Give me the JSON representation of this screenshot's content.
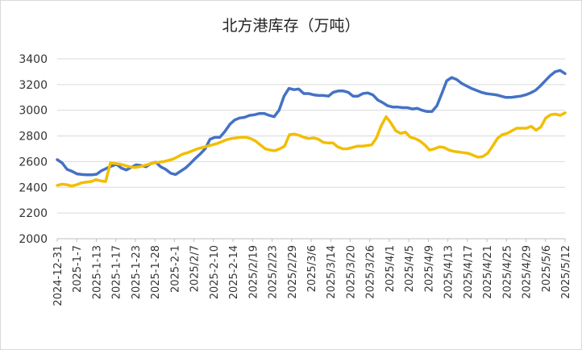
{
  "chart_data": {
    "type": "line",
    "title": "北方港库存（万吨）",
    "xlabel": "",
    "ylabel": "",
    "ylim": [
      2000,
      3400
    ],
    "yticks": [
      2000,
      2200,
      2400,
      2600,
      2800,
      3000,
      3200,
      3400
    ],
    "x_tick_labels": [
      "2024-12-31",
      "2025-1-7",
      "2025-1-13",
      "2025-1-17",
      "2025-1-23",
      "2025-1-28",
      "2025-2-1",
      "2025/2/7",
      "2025-2-10",
      "2025-2-14",
      "2025/2/19",
      "2025/2/23",
      "2025/2/29",
      "2025/3/6",
      "2025/3/14",
      "2025/3/20",
      "2025/3/26",
      "2025/4/1",
      "2025/4/5",
      "2025/4/9",
      "2025/4/13",
      "2025/4/17",
      "2025/4/21",
      "2025/4/25",
      "2025/4/29",
      "2025/5/6",
      "2025/5/12"
    ],
    "grid": "horizontal",
    "legend": "none",
    "colors": [
      "#4472C4",
      "#F2BE00"
    ],
    "series": [
      {
        "values": [
          2615,
          2590,
          2540,
          2525,
          2505,
          2500,
          2498,
          2497,
          2502,
          2530,
          2548,
          2565,
          2580,
          2550,
          2535,
          2555,
          2575,
          2570,
          2560,
          2585,
          2595,
          2560,
          2540,
          2510,
          2500,
          2525,
          2550,
          2585,
          2625,
          2660,
          2700,
          2775,
          2790,
          2790,
          2835,
          2890,
          2925,
          2940,
          2945,
          2960,
          2965,
          2975,
          2975,
          2960,
          2950,
          3000,
          3110,
          3170,
          3160,
          3165,
          3130,
          3130,
          3120,
          3115,
          3115,
          3110,
          3140,
          3150,
          3150,
          3140,
          3110,
          3110,
          3130,
          3135,
          3120,
          3080,
          3060,
          3035,
          3025,
          3025,
          3020,
          3020,
          3010,
          3015,
          3000,
          2990,
          2990,
          3035,
          3130,
          3230,
          3255,
          3240,
          3210,
          3190,
          3170,
          3155,
          3140,
          3130,
          3125,
          3120,
          3110,
          3100,
          3100,
          3105,
          3110,
          3120,
          3135,
          3155,
          3190,
          3230,
          3270,
          3300,
          3310,
          3285
        ]
      },
      {
        "values": [
          2415,
          2425,
          2420,
          2410,
          2420,
          2435,
          2440,
          2445,
          2460,
          2450,
          2445,
          2590,
          2585,
          2580,
          2570,
          2560,
          2555,
          2560,
          2570,
          2580,
          2590,
          2595,
          2600,
          2610,
          2620,
          2640,
          2660,
          2670,
          2685,
          2700,
          2710,
          2720,
          2730,
          2740,
          2755,
          2770,
          2780,
          2785,
          2790,
          2790,
          2780,
          2760,
          2730,
          2700,
          2690,
          2685,
          2700,
          2720,
          2810,
          2815,
          2805,
          2790,
          2780,
          2785,
          2775,
          2750,
          2745,
          2745,
          2715,
          2700,
          2700,
          2710,
          2720,
          2720,
          2725,
          2730,
          2785,
          2880,
          2950,
          2900,
          2840,
          2820,
          2830,
          2790,
          2780,
          2760,
          2730,
          2690,
          2700,
          2715,
          2710,
          2690,
          2680,
          2675,
          2670,
          2665,
          2650,
          2635,
          2640,
          2665,
          2720,
          2780,
          2810,
          2820,
          2840,
          2860,
          2860,
          2860,
          2875,
          2845,
          2870,
          2940,
          2965,
          2970,
          2960,
          2980
        ]
      }
    ]
  }
}
